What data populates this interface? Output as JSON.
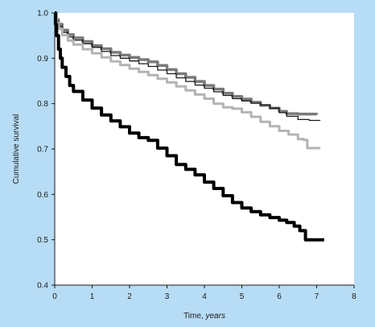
{
  "colors": {
    "background": "#b7dcf5",
    "plot_area": "#ffffff",
    "axis": "#1a1a1a"
  },
  "chart_data": {
    "type": "line",
    "step": true,
    "title": "",
    "ylabel": "Cumulative survival",
    "xlabel": "Time,",
    "xlabel_unit": "years",
    "xlim": [
      0,
      8
    ],
    "ylim": [
      0.4,
      1.0
    ],
    "xticks": [
      0,
      1,
      2,
      3,
      4,
      5,
      6,
      7,
      8
    ],
    "yticks": [
      0.4,
      0.5,
      0.6,
      0.7,
      0.8,
      0.9,
      1.0
    ],
    "ytick_labels": [
      "0.4",
      "0.5",
      "0.6",
      "0.7",
      "0.8",
      "0.9",
      "1.0"
    ],
    "grid": false,
    "legend": "none",
    "series": [
      {
        "color": "#7a7a7a",
        "width": 3.5,
        "x": [
          0,
          0.05,
          0.1,
          0.2,
          0.35,
          0.5,
          0.75,
          1.0,
          1.25,
          1.5,
          1.75,
          2.0,
          2.25,
          2.5,
          2.75,
          3.0,
          3.25,
          3.5,
          3.75,
          4.0,
          4.25,
          4.5,
          4.75,
          5.0,
          5.25,
          5.5,
          5.75,
          6.0,
          6.2,
          6.5,
          6.75,
          7.0
        ],
        "y": [
          1.0,
          0.985,
          0.975,
          0.962,
          0.952,
          0.945,
          0.937,
          0.928,
          0.921,
          0.913,
          0.907,
          0.902,
          0.897,
          0.892,
          0.884,
          0.875,
          0.866,
          0.858,
          0.849,
          0.84,
          0.832,
          0.823,
          0.816,
          0.81,
          0.803,
          0.796,
          0.79,
          0.783,
          0.778,
          0.777,
          0.777,
          0.776
        ]
      },
      {
        "color": "#1a1a1a",
        "width": 1.3,
        "x": [
          0,
          0.05,
          0.1,
          0.2,
          0.35,
          0.5,
          0.75,
          1.0,
          1.25,
          1.5,
          1.75,
          2.0,
          2.25,
          2.5,
          2.75,
          3.0,
          3.25,
          3.5,
          3.75,
          4.0,
          4.25,
          4.5,
          4.75,
          5.0,
          5.25,
          5.5,
          5.75,
          6.0,
          6.2,
          6.5,
          6.8,
          7.1
        ],
        "y": [
          1.0,
          0.982,
          0.97,
          0.957,
          0.947,
          0.94,
          0.932,
          0.924,
          0.915,
          0.906,
          0.9,
          0.894,
          0.888,
          0.882,
          0.874,
          0.866,
          0.857,
          0.849,
          0.841,
          0.834,
          0.826,
          0.818,
          0.811,
          0.806,
          0.801,
          0.797,
          0.79,
          0.78,
          0.772,
          0.765,
          0.763,
          0.763
        ]
      },
      {
        "color": "#b4b4b4",
        "width": 3.0,
        "x": [
          0,
          0.05,
          0.1,
          0.2,
          0.35,
          0.5,
          0.75,
          1.0,
          1.25,
          1.5,
          1.75,
          2.0,
          2.25,
          2.5,
          2.75,
          3.0,
          3.25,
          3.5,
          3.75,
          4.0,
          4.25,
          4.5,
          4.75,
          5.0,
          5.25,
          5.5,
          5.75,
          6.0,
          6.25,
          6.5,
          6.65,
          6.75,
          7.1
        ],
        "y": [
          1.0,
          0.978,
          0.965,
          0.951,
          0.939,
          0.93,
          0.92,
          0.911,
          0.902,
          0.893,
          0.885,
          0.877,
          0.87,
          0.863,
          0.855,
          0.847,
          0.838,
          0.829,
          0.82,
          0.811,
          0.8,
          0.792,
          0.789,
          0.781,
          0.771,
          0.76,
          0.75,
          0.74,
          0.732,
          0.722,
          0.72,
          0.702,
          0.702
        ]
      },
      {
        "color": "#000000",
        "width": 4.0,
        "x": [
          0,
          0.02,
          0.05,
          0.1,
          0.15,
          0.2,
          0.3,
          0.4,
          0.5,
          0.75,
          1.0,
          1.25,
          1.5,
          1.75,
          2.0,
          2.25,
          2.5,
          2.75,
          3.0,
          3.25,
          3.5,
          3.75,
          4.0,
          4.25,
          4.5,
          4.75,
          5.0,
          5.25,
          5.5,
          5.75,
          6.0,
          6.2,
          6.4,
          6.55,
          6.7,
          7.2
        ],
        "y": [
          1.0,
          0.975,
          0.95,
          0.92,
          0.9,
          0.88,
          0.86,
          0.84,
          0.827,
          0.808,
          0.79,
          0.775,
          0.762,
          0.749,
          0.735,
          0.725,
          0.719,
          0.702,
          0.685,
          0.666,
          0.655,
          0.643,
          0.627,
          0.613,
          0.597,
          0.582,
          0.57,
          0.562,
          0.555,
          0.549,
          0.543,
          0.538,
          0.53,
          0.52,
          0.5,
          0.5
        ]
      }
    ]
  }
}
